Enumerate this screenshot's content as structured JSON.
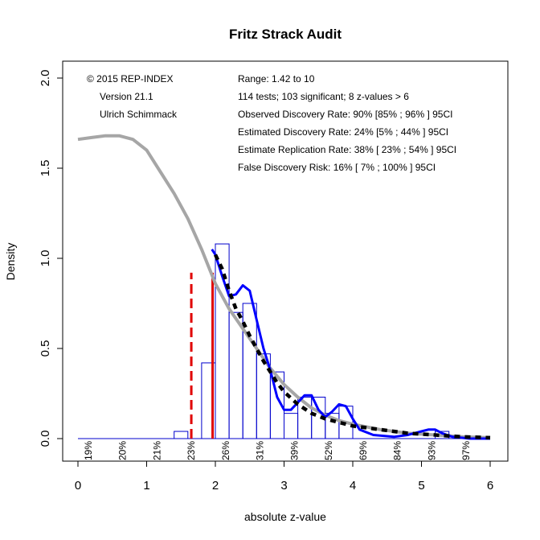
{
  "chart_data": {
    "type": "histogram",
    "title": "Fritz Strack Audit",
    "xlabel": "absolute z-value",
    "ylabel": "Density",
    "xlim": [
      0,
      6
    ],
    "ylim": [
      0,
      2
    ],
    "x_ticks": [
      "0",
      "1",
      "2",
      "3",
      "4",
      "5",
      "6"
    ],
    "y_ticks": [
      "0.0",
      "0.5",
      "1.0",
      "1.5",
      "2.0"
    ],
    "bin_width": 0.2,
    "bins": [
      {
        "x0": 1.4,
        "x1": 1.6,
        "value": 0.04
      },
      {
        "x0": 1.8,
        "x1": 2.0,
        "value": 0.42
      },
      {
        "x0": 2.0,
        "x1": 2.2,
        "value": 1.08
      },
      {
        "x0": 2.2,
        "x1": 2.4,
        "value": 0.7
      },
      {
        "x0": 2.4,
        "x1": 2.6,
        "value": 0.75
      },
      {
        "x0": 2.6,
        "x1": 2.8,
        "value": 0.47
      },
      {
        "x0": 2.8,
        "x1": 3.0,
        "value": 0.37
      },
      {
        "x0": 3.0,
        "x1": 3.2,
        "value": 0.14
      },
      {
        "x0": 3.2,
        "x1": 3.4,
        "value": 0.23
      },
      {
        "x0": 3.4,
        "x1": 3.6,
        "value": 0.23
      },
      {
        "x0": 3.6,
        "x1": 3.8,
        "value": 0.14
      },
      {
        "x0": 3.8,
        "x1": 4.0,
        "value": 0.18
      },
      {
        "x0": 5.2,
        "x1": 5.4,
        "value": 0.04
      }
    ],
    "series": [
      {
        "style": "gray-solid",
        "color": "#a6a6a6",
        "points": [
          [
            0,
            1.66
          ],
          [
            0.2,
            1.67
          ],
          [
            0.4,
            1.68
          ],
          [
            0.6,
            1.68
          ],
          [
            0.8,
            1.66
          ],
          [
            1.0,
            1.6
          ],
          [
            1.2,
            1.48
          ],
          [
            1.4,
            1.36
          ],
          [
            1.6,
            1.22
          ],
          [
            1.8,
            1.05
          ],
          [
            2.0,
            0.86
          ],
          [
            2.2,
            0.72
          ],
          [
            2.4,
            0.61
          ],
          [
            2.6,
            0.5
          ],
          [
            2.8,
            0.39
          ],
          [
            3.0,
            0.3
          ],
          [
            3.2,
            0.23
          ],
          [
            3.4,
            0.17
          ],
          [
            3.6,
            0.13
          ],
          [
            3.8,
            0.1
          ],
          [
            4.0,
            0.08
          ],
          [
            4.4,
            0.05
          ],
          [
            4.8,
            0.03
          ],
          [
            5.2,
            0.02
          ],
          [
            5.6,
            0.01
          ],
          [
            6.0,
            0.005
          ]
        ]
      },
      {
        "style": "blue-solid",
        "color": "#0000ff",
        "points": [
          [
            1.95,
            1.05
          ],
          [
            2.0,
            1.02
          ],
          [
            2.1,
            0.9
          ],
          [
            2.2,
            0.79
          ],
          [
            2.3,
            0.8
          ],
          [
            2.4,
            0.85
          ],
          [
            2.5,
            0.82
          ],
          [
            2.6,
            0.66
          ],
          [
            2.7,
            0.5
          ],
          [
            2.8,
            0.38
          ],
          [
            2.9,
            0.23
          ],
          [
            3.0,
            0.16
          ],
          [
            3.1,
            0.16
          ],
          [
            3.2,
            0.2
          ],
          [
            3.3,
            0.24
          ],
          [
            3.4,
            0.24
          ],
          [
            3.5,
            0.16
          ],
          [
            3.6,
            0.12
          ],
          [
            3.7,
            0.15
          ],
          [
            3.8,
            0.19
          ],
          [
            3.9,
            0.18
          ],
          [
            4.0,
            0.11
          ],
          [
            4.1,
            0.05
          ],
          [
            4.3,
            0.02
          ],
          [
            4.6,
            0.01
          ],
          [
            4.8,
            0.02
          ],
          [
            5.0,
            0.04
          ],
          [
            5.1,
            0.05
          ],
          [
            5.2,
            0.05
          ],
          [
            5.3,
            0.03
          ],
          [
            5.45,
            0.01
          ],
          [
            5.7,
            0.0
          ],
          [
            6.0,
            0.0
          ]
        ]
      },
      {
        "style": "black-dashed",
        "color": "#000000",
        "points": [
          [
            2.0,
            1.02
          ],
          [
            2.1,
            0.94
          ],
          [
            2.2,
            0.82
          ],
          [
            2.3,
            0.72
          ],
          [
            2.4,
            0.65
          ],
          [
            2.5,
            0.57
          ],
          [
            2.6,
            0.5
          ],
          [
            2.7,
            0.43
          ],
          [
            2.8,
            0.37
          ],
          [
            2.9,
            0.31
          ],
          [
            3.0,
            0.26
          ],
          [
            3.2,
            0.19
          ],
          [
            3.4,
            0.14
          ],
          [
            3.6,
            0.11
          ],
          [
            3.8,
            0.09
          ],
          [
            4.0,
            0.07
          ],
          [
            4.4,
            0.05
          ],
          [
            4.8,
            0.03
          ],
          [
            5.2,
            0.02
          ],
          [
            5.6,
            0.01
          ],
          [
            6.0,
            0.005
          ]
        ]
      }
    ],
    "vlines": [
      {
        "x": 1.65,
        "y_top": 0.92,
        "style": "red-dashed",
        "color": "#e00000"
      },
      {
        "x": 1.96,
        "y_top": 0.92,
        "style": "red-solid",
        "color": "#e00000"
      }
    ],
    "percent_labels": [
      {
        "x": 0.15,
        "label": "19%"
      },
      {
        "x": 0.65,
        "label": "20%"
      },
      {
        "x": 1.15,
        "label": "21%"
      },
      {
        "x": 1.65,
        "label": "23%"
      },
      {
        "x": 2.15,
        "label": "26%"
      },
      {
        "x": 2.65,
        "label": "31%"
      },
      {
        "x": 3.15,
        "label": "39%"
      },
      {
        "x": 3.65,
        "label": "52%"
      },
      {
        "x": 4.15,
        "label": "69%"
      },
      {
        "x": 4.65,
        "label": "84%"
      },
      {
        "x": 5.15,
        "label": "93%"
      },
      {
        "x": 5.65,
        "label": "97%"
      }
    ],
    "annotations_left": [
      "© 2015 REP-INDEX",
      "Version 21.1",
      "Ulrich Schimmack"
    ],
    "annotations_right": [
      "Range: 1.42 to 10",
      "114 tests; 103 significant; 8 z-values > 6",
      "Observed Discovery Rate: 90% [85% ; 96% ] 95CI",
      "Estimated Discovery Rate: 24% [5% ; 44% ] 95CI",
      "Estimate Replication Rate: 38% [ 23% ; 54% ] 95CI",
      "False Discovery Risk: 16% [ 7% ; 100% ] 95CI"
    ],
    "grid": false,
    "legend": "none"
  }
}
